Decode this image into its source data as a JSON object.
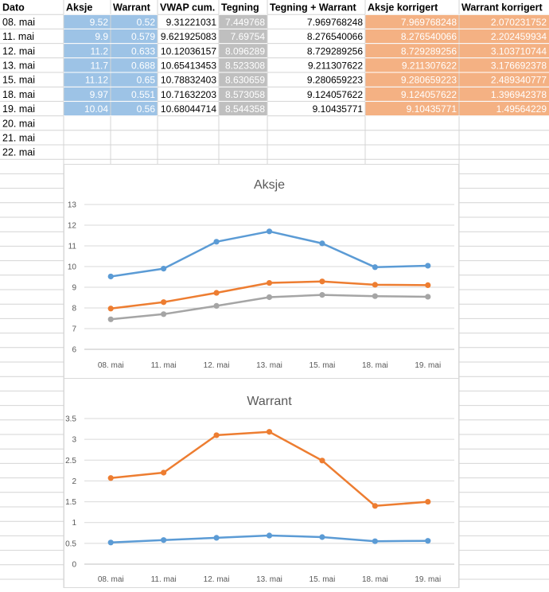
{
  "sheet": {
    "headers": [
      "Dato",
      "Aksje",
      "Warrant",
      "VWAP cum.",
      "Tegning",
      "Tegning + Warrant",
      "Aksje korrigert",
      "Warrant korrigert"
    ],
    "rows": [
      [
        "08. mai",
        "9.52",
        "0.52",
        "9.31221031",
        "7.449768",
        "7.969768248",
        "7.969768248",
        "2.070231752"
      ],
      [
        "11. mai",
        "9.9",
        "0.579",
        "9.621925083",
        "7.69754",
        "8.276540066",
        "8.276540066",
        "2.202459934"
      ],
      [
        "12. mai",
        "11.2",
        "0.633",
        "10.12036157",
        "8.096289",
        "8.729289256",
        "8.729289256",
        "3.103710744"
      ],
      [
        "13. mai",
        "11.7",
        "0.688",
        "10.65413453",
        "8.523308",
        "9.211307622",
        "9.211307622",
        "3.176692378"
      ],
      [
        "15. mai",
        "11.12",
        "0.65",
        "10.78832403",
        "8.630659",
        "9.280659223",
        "9.280659223",
        "2.489340777"
      ],
      [
        "18. mai",
        "9.97",
        "0.551",
        "10.71632203",
        "8.573058",
        "9.124057622",
        "9.124057622",
        "1.396942378"
      ],
      [
        "19. mai",
        "10.04",
        "0.56",
        "10.68044714",
        "8.544358",
        "9.10435771",
        "9.10435771",
        "1.49564229"
      ],
      [
        "20. mai",
        "",
        "",
        "",
        "",
        "",
        "",
        ""
      ],
      [
        "21. mai",
        "",
        "",
        "",
        "",
        "",
        "",
        ""
      ],
      [
        "22. mai",
        "",
        "",
        "",
        "",
        "",
        "",
        ""
      ]
    ]
  },
  "colors": {
    "blue_fill": "#9dc3e6",
    "gray_fill": "#bfbfbf",
    "orange_fill": "#f4b183",
    "series_blue": "#5b9bd5",
    "series_orange": "#ed7d31",
    "series_gray": "#a5a5a5"
  },
  "chart_data": [
    {
      "type": "line",
      "title": "Aksje",
      "categories": [
        "08. mai",
        "11. mai",
        "12. mai",
        "13. mai",
        "15. mai",
        "18. mai",
        "19. mai"
      ],
      "ylim": [
        6,
        13
      ],
      "yticks": [
        "6",
        "7",
        "8",
        "9",
        "10",
        "11",
        "12",
        "13"
      ],
      "grid": true,
      "series": [
        {
          "color": "#5b9bd5",
          "values": [
            9.52,
            9.9,
            11.2,
            11.7,
            11.12,
            9.97,
            10.04
          ]
        },
        {
          "color": "#ed7d31",
          "values": [
            7.97,
            8.28,
            8.73,
            9.21,
            9.28,
            9.12,
            9.1
          ]
        },
        {
          "color": "#a5a5a5",
          "values": [
            7.45,
            7.7,
            8.1,
            8.52,
            8.63,
            8.57,
            8.54
          ]
        }
      ]
    },
    {
      "type": "line",
      "title": "Warrant",
      "categories": [
        "08. mai",
        "11. mai",
        "12. mai",
        "13. mai",
        "15. mai",
        "18. mai",
        "19. mai"
      ],
      "ylim": [
        0,
        3.5
      ],
      "yticks": [
        "0",
        "0.5",
        "1",
        "1.5",
        "2",
        "2.5",
        "3",
        "3.5"
      ],
      "grid": true,
      "series": [
        {
          "color": "#ed7d31",
          "values": [
            2.07,
            2.2,
            3.1,
            3.18,
            2.49,
            1.4,
            1.5
          ]
        },
        {
          "color": "#5b9bd5",
          "values": [
            0.52,
            0.579,
            0.633,
            0.688,
            0.65,
            0.551,
            0.56
          ]
        }
      ]
    }
  ]
}
